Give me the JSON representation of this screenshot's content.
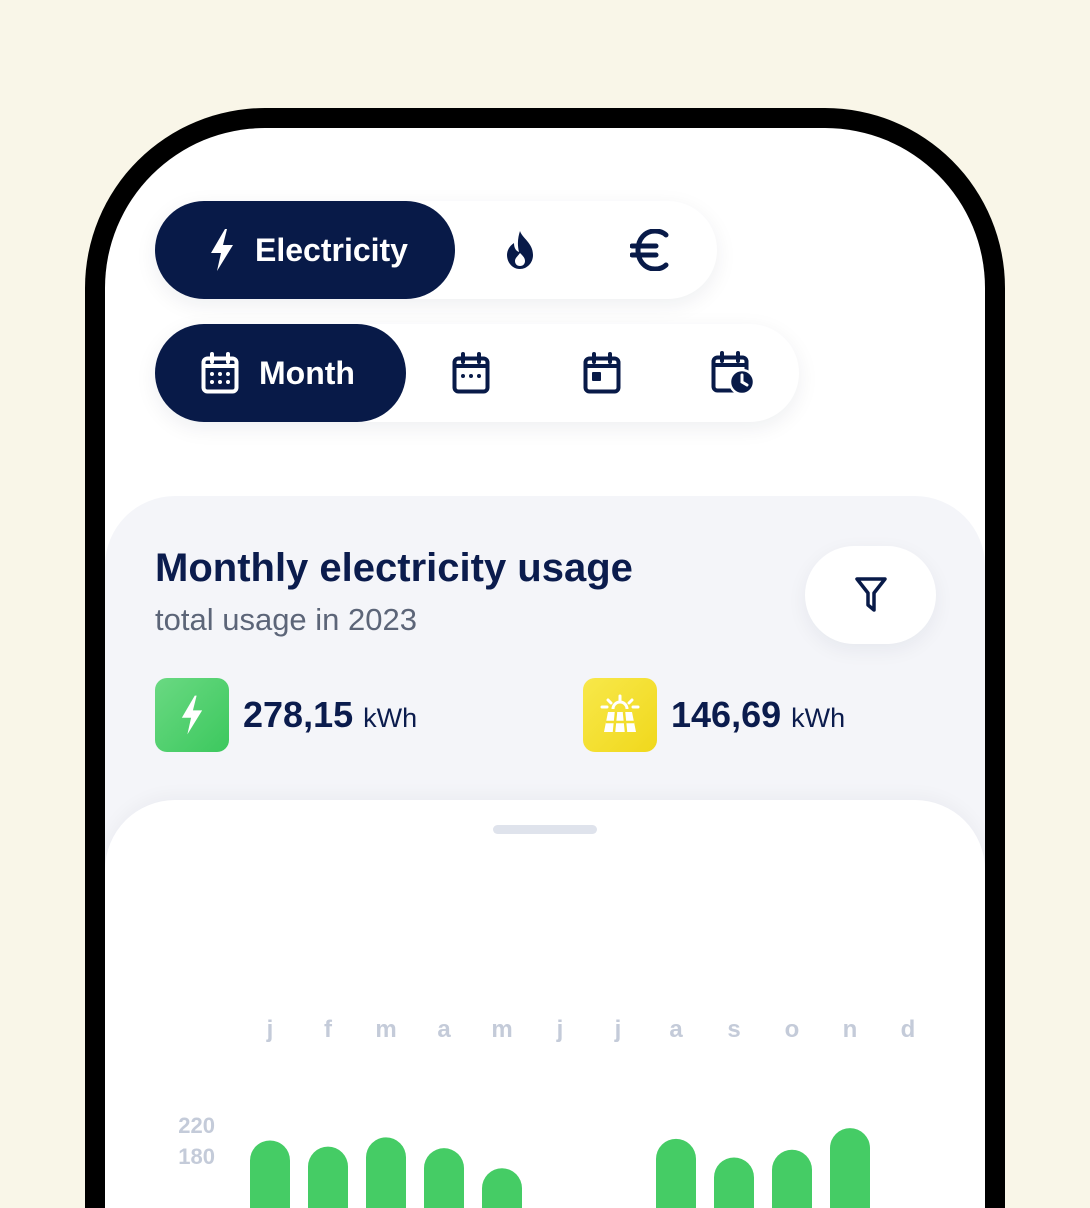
{
  "colors": {
    "navy": "#081a48",
    "green": "#45cc65",
    "yellow": "#f3e13a",
    "muted": "#c4cbd9"
  },
  "energy_tabs": [
    {
      "label": "Electricity",
      "icon": "lightning-icon",
      "selected": true
    },
    {
      "label": "",
      "icon": "flame-icon",
      "selected": false
    },
    {
      "label": "",
      "icon": "euro-icon",
      "selected": false
    }
  ],
  "period_tabs": [
    {
      "label": "Month",
      "icon": "calendar-month-icon",
      "selected": true
    },
    {
      "label": "",
      "icon": "calendar-week-icon",
      "selected": false
    },
    {
      "label": "",
      "icon": "calendar-day-icon",
      "selected": false
    },
    {
      "label": "",
      "icon": "calendar-clock-icon",
      "selected": false
    }
  ],
  "card": {
    "title": "Monthly electricity usage",
    "subtitle": "total usage in 2023",
    "usage": {
      "value": "278,15",
      "unit": "kWh",
      "icon": "lightning-icon"
    },
    "solar": {
      "value": "146,69",
      "unit": "kWh",
      "icon": "solar-panel-icon"
    }
  },
  "chart_data": {
    "type": "bar",
    "categories": [
      "j",
      "f",
      "m",
      "a",
      "m",
      "j",
      "j",
      "a",
      "s",
      "o",
      "n",
      "d"
    ],
    "values": [
      200,
      192,
      204,
      190,
      164,
      null,
      null,
      202,
      178,
      188,
      216,
      null
    ],
    "y_ticks": [
      220,
      180
    ],
    "ylim": [
      0,
      220
    ]
  }
}
